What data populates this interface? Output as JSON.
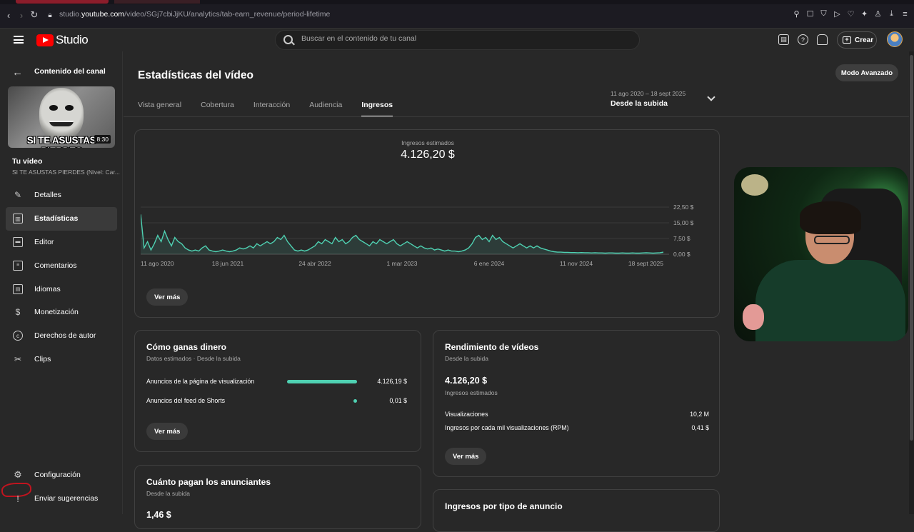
{
  "browser": {
    "url_prefix": "studio.",
    "url_domain": "youtube.com",
    "url_path": "/video/SGj7cbiJjKU/analytics/tab-earn_revenue/period-lifetime"
  },
  "topbar": {
    "logo_text": "Studio",
    "search_placeholder": "Buscar en el contenido de tu canal",
    "create_label": "Crear"
  },
  "sidebar": {
    "back_label": "Contenido del canal",
    "thumbnail_caption": "SI TE ASUSTAS PIERDES",
    "thumbnail_duration": "8:30",
    "your_video_label": "Tu vídeo",
    "video_title": "SI TE ASUSTAS PIERDES (Nivel: Car...",
    "items": [
      {
        "label": "Detalles",
        "icon": "pencil-icon"
      },
      {
        "label": "Estadísticas",
        "icon": "analytics-icon",
        "active": true
      },
      {
        "label": "Editor",
        "icon": "editor-icon"
      },
      {
        "label": "Comentarios",
        "icon": "comments-icon"
      },
      {
        "label": "Idiomas",
        "icon": "subtitles-icon"
      },
      {
        "label": "Monetización",
        "icon": "dollar-icon"
      },
      {
        "label": "Derechos de autor",
        "icon": "copyright-icon"
      },
      {
        "label": "Clips",
        "icon": "scissors-icon"
      }
    ],
    "settings_label": "Configuración",
    "feedback_label": "Enviar sugerencias"
  },
  "main": {
    "title": "Estadísticas del vídeo",
    "tabs": [
      {
        "label": "Vista general"
      },
      {
        "label": "Cobertura"
      },
      {
        "label": "Interacción"
      },
      {
        "label": "Audiencia"
      },
      {
        "label": "Ingresos",
        "active": true
      }
    ],
    "date_range": "11 ago 2020 – 18 sept 2025",
    "date_selector": "Desde la subida",
    "advanced_button": "Modo Avanzado"
  },
  "revenue_card": {
    "metric_label": "Ingresos estimados",
    "metric_value": "4.126,20 $",
    "more_button": "Ver más"
  },
  "chart_data": {
    "type": "area",
    "color": "#4fd1b2",
    "x_tick_labels": [
      "11 ago 2020",
      "18 jun 2021",
      "24 abr 2022",
      "1 mar 2023",
      "6 ene 2024",
      "11 nov 2024",
      "18 sept 2025"
    ],
    "y_tick_labels": [
      "22,50 $",
      "15,00 $",
      "7,50 $",
      "0,00 $"
    ],
    "y_ticks": [
      22.5,
      15,
      7.5,
      0
    ],
    "ylim": [
      0,
      22.5
    ],
    "values": [
      19,
      3,
      6,
      2,
      5,
      9,
      6,
      11,
      7,
      4,
      8,
      6,
      5,
      3,
      2,
      1.5,
      2,
      1.5,
      3,
      4,
      2,
      1.5,
      1.2,
      1.5,
      2,
      1.5,
      1.2,
      1.5,
      2,
      3,
      2.5,
      3,
      4,
      3,
      5,
      4,
      5,
      6,
      5,
      6,
      8,
      7,
      9,
      6,
      4,
      2,
      1.5,
      2,
      1.5,
      2,
      3,
      4,
      6,
      5,
      7,
      6,
      5,
      8,
      6,
      7,
      5,
      6,
      8,
      9,
      7,
      6,
      5,
      4,
      6,
      5,
      7,
      6,
      5,
      6,
      7,
      5,
      4,
      5,
      6,
      5,
      4,
      3,
      4,
      3,
      2.5,
      3,
      2,
      2.5,
      2,
      1.5,
      2,
      1.5,
      1.5,
      1.2,
      1.5,
      2,
      3,
      5,
      8,
      9,
      7,
      8,
      6,
      9,
      7,
      8,
      6,
      5,
      4,
      3,
      4,
      5,
      4,
      3,
      4,
      3,
      4,
      3,
      2.5,
      2,
      1.5,
      1.2,
      1,
      1,
      0.9,
      0.9,
      0.8,
      0.8,
      0.7,
      0.8,
      0.7,
      0.7,
      0.6,
      0.7,
      0.6,
      0.6,
      0.5,
      0.6,
      0.6,
      0.5,
      0.5,
      0.6,
      0.5,
      0.5,
      0.6,
      0.5,
      0.5,
      0.6,
      0.7,
      0.6,
      0.5,
      0.6,
      0.7,
      1
    ]
  },
  "earnings_card": {
    "title": "Cómo ganas dinero",
    "subtitle": "Datos estimados · Desde la subida",
    "rows": [
      {
        "label": "Anuncios de la página de visualización",
        "value": "4.126,19 $",
        "share": 0.9998
      },
      {
        "label": "Anuncios del feed de Shorts",
        "value": "0,01 $",
        "share": 0.0002
      }
    ],
    "more_button": "Ver más"
  },
  "performance_card": {
    "title": "Rendimiento de vídeos",
    "subtitle": "Desde la subida",
    "value": "4.126,20 $",
    "value_label": "Ingresos estimados",
    "rows": [
      {
        "label": "Visualizaciones",
        "value": "10,2 M"
      },
      {
        "label": "Ingresos por cada mil visualizaciones (RPM)",
        "value": "0,41 $"
      }
    ],
    "more_button": "Ver más"
  },
  "advertisers_card": {
    "title": "Cuánto pagan los anunciantes",
    "subtitle": "Desde la subida",
    "value": "1,46 $"
  },
  "adtype_card": {
    "title": "Ingresos por tipo de anuncio"
  }
}
